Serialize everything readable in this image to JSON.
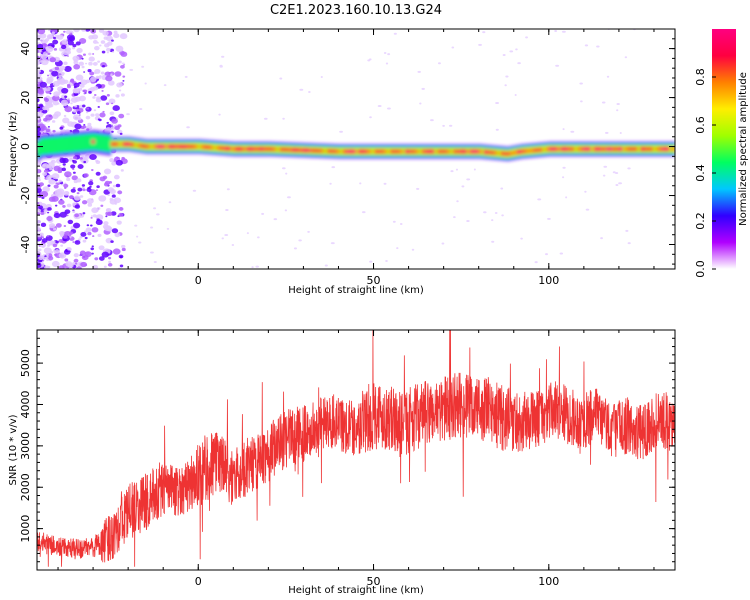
{
  "figure": {
    "title": "C2E1.2023.160.10.13.G24"
  },
  "chart_data": [
    {
      "type": "heatmap",
      "xlabel": "Height of straight line (km)",
      "ylabel": "Frequency (Hz)",
      "xlim": [
        -46,
        136
      ],
      "ylim": [
        -50,
        48
      ],
      "xticks": [
        0,
        50,
        100
      ],
      "yticks": [
        -40,
        -20,
        0,
        20,
        40
      ],
      "colorbar": {
        "label": "Normalized spectral amplitude",
        "range": [
          0,
          1
        ],
        "ticks": [
          0.0,
          0.2,
          0.4,
          0.6,
          0.8
        ],
        "colors": [
          "#ffffff",
          "#b000ff",
          "#3000ff",
          "#00c8ff",
          "#00ff60",
          "#a0ff00",
          "#ffee00",
          "#ff8000",
          "#ff0040",
          "#ff0080"
        ]
      },
      "band": {
        "center_hz": [
          [
            -45,
            0
          ],
          [
            -30,
            2
          ],
          [
            -25,
            1
          ],
          [
            -20,
            1
          ],
          [
            -15,
            0
          ],
          [
            -10,
            0
          ],
          [
            0,
            0
          ],
          [
            10,
            -1
          ],
          [
            20,
            -1
          ],
          [
            40,
            -2
          ],
          [
            60,
            -2
          ],
          [
            80,
            -2
          ],
          [
            88,
            -3
          ],
          [
            92,
            -2
          ],
          [
            100,
            -1
          ],
          [
            120,
            -1
          ],
          [
            136,
            -1
          ]
        ],
        "half_width_hz": 3,
        "peak_amplitude": 1.0
      }
    },
    {
      "type": "line",
      "xlabel": "Height of straight line (km)",
      "ylabel": "SNR (10 * v/v)",
      "xlim": [
        -46,
        136
      ],
      "ylim": [
        0,
        5800
      ],
      "xticks": [
        0,
        50,
        100
      ],
      "yticks": [
        1000,
        2000,
        3000,
        4000,
        5000
      ],
      "color": "#ee3333",
      "series": [
        {
          "x": [
            -46,
            -40,
            -35,
            -30,
            -26,
            -22,
            -18,
            -14,
            -10,
            -6,
            -2,
            2,
            6,
            10,
            14,
            18,
            22,
            26,
            30,
            34,
            38,
            42,
            46,
            50,
            54,
            58,
            62,
            66,
            70,
            74,
            78,
            82,
            86,
            90,
            94,
            98,
            102,
            106,
            110,
            114,
            118,
            122,
            126,
            130,
            134,
            136
          ],
          "values": [
            700,
            550,
            500,
            550,
            700,
            1200,
            1500,
            1700,
            2000,
            1900,
            2100,
            2500,
            2600,
            2200,
            2500,
            2700,
            3000,
            3200,
            3300,
            3400,
            3600,
            3500,
            3400,
            3800,
            3700,
            3500,
            3700,
            3800,
            3900,
            4000,
            3900,
            3900,
            3700,
            3600,
            3600,
            3700,
            3900,
            3700,
            3600,
            3700,
            3400,
            3500,
            3300,
            3600,
            3600,
            3500
          ],
          "noise_amplitude": [
            250,
            250,
            250,
            250,
            600,
            700,
            700,
            700,
            700,
            600,
            700,
            900,
            800,
            700,
            700,
            700,
            700,
            700,
            700,
            700,
            700,
            700,
            700,
            900,
            800,
            800,
            800,
            800,
            800,
            800,
            800,
            800,
            800,
            800,
            700,
            700,
            700,
            700,
            700,
            700,
            700,
            700,
            700,
            700,
            700,
            700
          ]
        }
      ]
    }
  ]
}
